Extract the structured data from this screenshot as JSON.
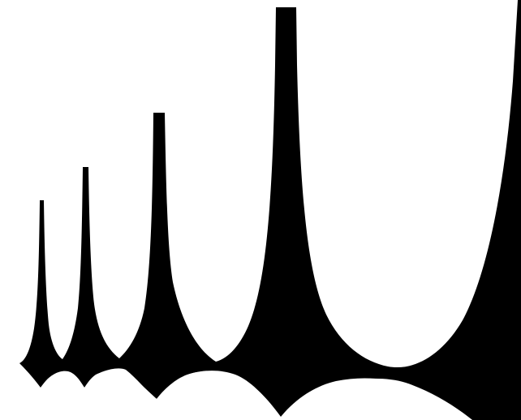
{
  "canvas": {
    "background": "#ffffff",
    "fill": "#000000"
  },
  "figure": {
    "description_shape": "silhouette",
    "spike_count": 4,
    "has_right_curved_wall": true
  }
}
